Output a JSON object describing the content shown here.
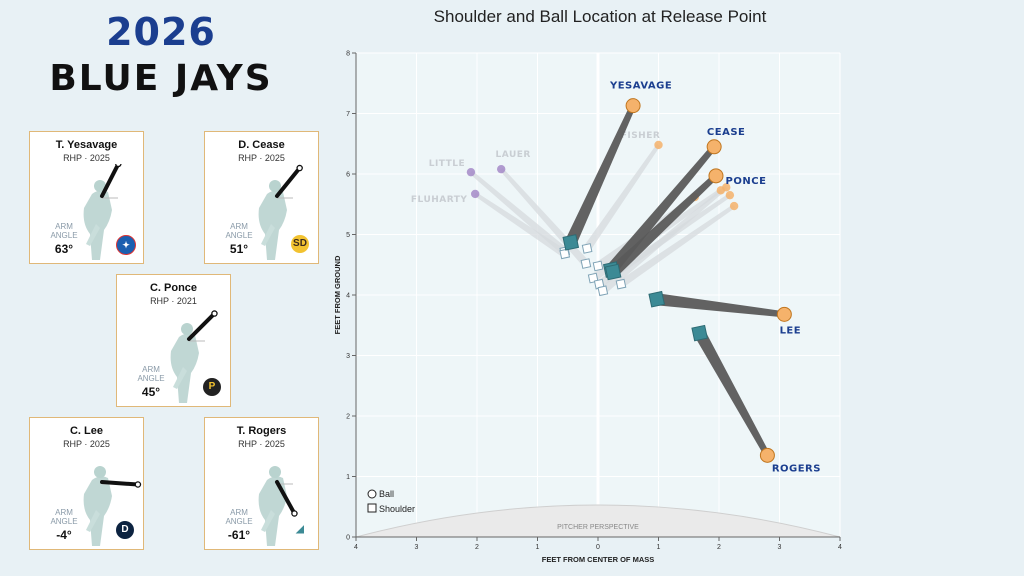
{
  "header": {
    "year": "2026",
    "team": "BLUE JAYS"
  },
  "colors": {
    "team_blue": "#1b3e8f",
    "ball_orange": "#f5b26b",
    "shoulder_teal": "#3c8a95",
    "arm_grey": "#5a5a5a",
    "purple": "#a58ac8"
  },
  "cards": [
    {
      "name": "T. Yesavage",
      "sub": "RHP · 2025",
      "arm_label_1": "ARM",
      "arm_label_2": "ANGLE",
      "angle": "63°",
      "angle_deg": 63,
      "logo": "blue-jays-logo",
      "logo_text": "",
      "logo_bg": "#1b5fb0",
      "logo_fg": "#ffffff"
    },
    {
      "name": "D. Cease",
      "sub": "RHP · 2025",
      "arm_label_1": "ARM",
      "arm_label_2": "ANGLE",
      "angle": "51°",
      "angle_deg": 51,
      "logo": "padres-logo",
      "logo_text": "SD",
      "logo_bg": "#f2c230",
      "logo_fg": "#3b2a1d"
    },
    {
      "name": "C. Ponce",
      "sub": "RHP · 2021",
      "arm_label_1": "ARM",
      "arm_label_2": "ANGLE",
      "angle": "45°",
      "angle_deg": 45,
      "logo": "pirates-logo",
      "logo_text": "P",
      "logo_bg": "#222222",
      "logo_fg": "#f2c230"
    },
    {
      "name": "C. Lee",
      "sub": "RHP · 2025",
      "arm_label_1": "ARM",
      "arm_label_2": "ANGLE",
      "angle": "-4°",
      "angle_deg": -4,
      "logo": "tigers-logo",
      "logo_text": "D",
      "logo_bg": "#0c2340",
      "logo_fg": "#ffffff"
    },
    {
      "name": "T. Rogers",
      "sub": "RHP · 2025",
      "arm_label_1": "ARM",
      "arm_label_2": "ANGLE",
      "angle": "-61°",
      "angle_deg": -61,
      "logo": "marlins-logo",
      "logo_text": "",
      "logo_bg": "#ffffff",
      "logo_fg": "#3c8a95"
    }
  ],
  "chart_data": {
    "type": "scatter",
    "title": "Shoulder and Ball Location at Release Point",
    "xlabel": "FEET FROM CENTER OF MASS",
    "ylabel": "FEET FROM GROUND",
    "xlim": [
      -4,
      4
    ],
    "ylim": [
      0,
      8
    ],
    "xticks": [
      -4,
      -3,
      -2,
      -1,
      0,
      1,
      2,
      3,
      4
    ],
    "xtick_labels": [
      "4",
      "3",
      "2",
      "1",
      "0",
      "1",
      "2",
      "3",
      "4"
    ],
    "yticks": [
      0,
      1,
      2,
      3,
      4,
      5,
      6,
      7,
      8
    ],
    "legend": {
      "ball": "Ball",
      "shoulder": "Shoulder",
      "position": "bottom-left"
    },
    "ground_label": "PITCHER PERSPECTIVE",
    "highlighted": [
      {
        "name": "YESAVAGE",
        "shoulder": [
          -0.45,
          4.87
        ],
        "ball": [
          0.58,
          7.13
        ]
      },
      {
        "name": "CEASE",
        "shoulder": [
          0.22,
          4.42
        ],
        "ball": [
          1.92,
          6.45
        ]
      },
      {
        "name": "PONCE",
        "shoulder": [
          0.25,
          4.38
        ],
        "ball": [
          1.95,
          5.97
        ]
      },
      {
        "name": "LEE",
        "shoulder": [
          0.97,
          3.93
        ],
        "ball": [
          3.08,
          3.68
        ]
      },
      {
        "name": "ROGERS",
        "shoulder": [
          1.68,
          3.37
        ],
        "ball": [
          2.8,
          1.35
        ]
      }
    ],
    "comparison": [
      {
        "name": "LITTLE",
        "shoulder": [
          -0.55,
          4.72
        ],
        "ball": [
          -2.1,
          6.03
        ],
        "color": "purple"
      },
      {
        "name": "LAUER",
        "shoulder": [
          -0.2,
          4.52
        ],
        "ball": [
          -1.6,
          6.08
        ],
        "color": "purple"
      },
      {
        "name": "FLUHARTY",
        "shoulder": [
          -0.55,
          4.68
        ],
        "ball": [
          -2.03,
          5.67
        ],
        "color": "purple"
      },
      {
        "name": "FISHER",
        "shoulder": [
          -0.18,
          4.77
        ],
        "ball": [
          1.0,
          6.48
        ],
        "color": "orange"
      },
      {
        "name": "",
        "shoulder": [
          -0.08,
          4.28
        ],
        "ball": [
          2.03,
          5.73
        ],
        "color": "orange"
      },
      {
        "name": "",
        "shoulder": [
          0.02,
          4.18
        ],
        "ball": [
          2.18,
          5.65
        ],
        "color": "orange"
      },
      {
        "name": "",
        "shoulder": [
          0.38,
          4.18
        ],
        "ball": [
          2.25,
          5.47
        ],
        "color": "orange"
      },
      {
        "name": "",
        "shoulder": [
          0.08,
          4.07
        ],
        "ball": [
          2.12,
          5.78
        ],
        "color": "orange"
      },
      {
        "name": "",
        "shoulder": [
          0.0,
          4.48
        ],
        "ball": [
          1.6,
          5.62
        ],
        "color": "orange"
      }
    ]
  }
}
